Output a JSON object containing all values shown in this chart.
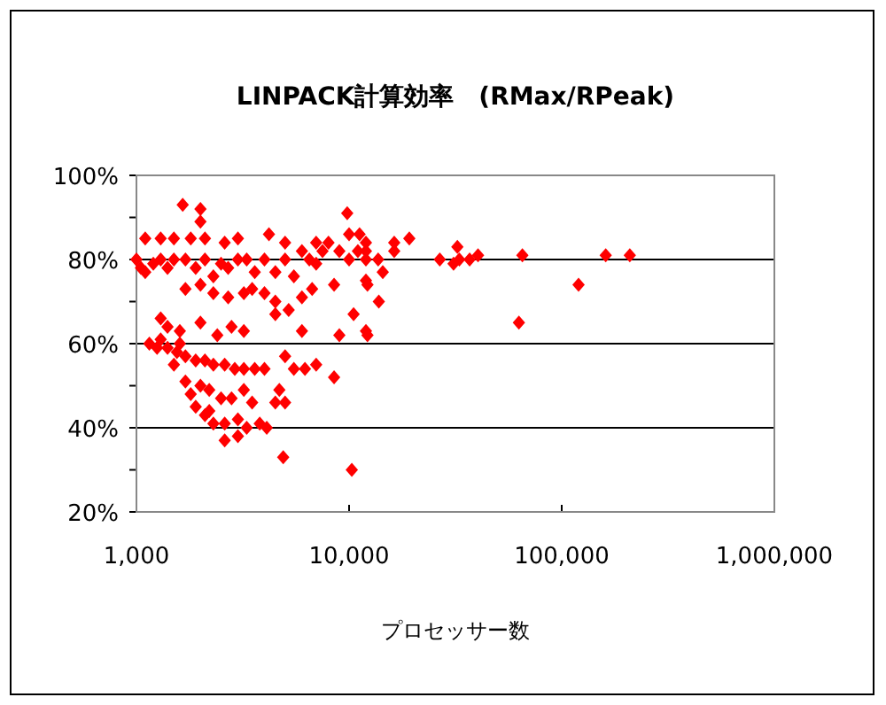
{
  "chart_data": {
    "type": "scatter",
    "title": "LINPACK計算効率　(RMax/RPeak)",
    "xlabel": "プロセッサー数",
    "log": "x",
    "xlim": [
      1000,
      1000000
    ],
    "xticks": [
      {
        "value": 1000,
        "label": "1,000"
      },
      {
        "value": 10000,
        "label": "10,000"
      },
      {
        "value": 100000,
        "label": "100,000"
      },
      {
        "value": 1000000,
        "label": "1,000,000"
      }
    ],
    "ylim": [
      20,
      100
    ],
    "yticks": [
      {
        "value": 20,
        "label": "20%"
      },
      {
        "value": 30,
        "label": null
      },
      {
        "value": 40,
        "label": "40%"
      },
      {
        "value": 50,
        "label": null
      },
      {
        "value": 60,
        "label": "60%"
      },
      {
        "value": 70,
        "label": null
      },
      {
        "value": 80,
        "label": "80%"
      },
      {
        "value": 90,
        "label": null
      },
      {
        "value": 100,
        "label": "100%"
      }
    ],
    "grid": "y",
    "marker": "diamond",
    "series": [
      {
        "color": "#ff0000",
        "x": [
          1650,
          2000,
          2000,
          1100,
          1300,
          1500,
          1800,
          2100,
          2600,
          3000,
          4200,
          5000,
          7000,
          10000,
          9800,
          1000,
          1050,
          1100,
          1200,
          1300,
          1400,
          1500,
          1700,
          1900,
          2100,
          2300,
          2500,
          2700,
          3000,
          3300,
          3600,
          4000,
          4500,
          5000,
          5500,
          6000,
          6500,
          7000,
          7500,
          8000,
          9000,
          10000,
          11000,
          1700,
          2000,
          2300,
          2700,
          3200,
          3500,
          4000,
          4500,
          5200,
          6000,
          6700,
          8500,
          10500,
          12000,
          1300,
          1400,
          1600,
          2000,
          2400,
          2800,
          3200,
          4500,
          6000,
          9000,
          12000,
          1150,
          1250,
          1400,
          1550,
          1700,
          1900,
          2100,
          2300,
          2600,
          2900,
          3200,
          3600,
          4000,
          1300,
          1600,
          5000,
          5500,
          6200,
          7000,
          8500,
          1500,
          1700,
          1800,
          2000,
          2200,
          2500,
          1900,
          2100,
          2300,
          2600,
          3000,
          3300,
          3800,
          4100,
          4500,
          5000,
          4700,
          3500,
          2800,
          2600,
          3000,
          4900,
          10300,
          2200,
          3200,
          11200,
          12000,
          12000,
          12000,
          13700,
          14400,
          12200,
          13800,
          12200,
          16300,
          16300,
          19200,
          26700,
          31000,
          32300,
          33000,
          36900,
          40400,
          65300,
          62900,
          120000,
          161000,
          209000
        ],
        "values": [
          93,
          92,
          89,
          85,
          85,
          85,
          85,
          85,
          84,
          85,
          86,
          84,
          84,
          86,
          91,
          80,
          78,
          77,
          79,
          80,
          78,
          80,
          80,
          78,
          80,
          76,
          79,
          78,
          80,
          80,
          77,
          80,
          77,
          80,
          76,
          82,
          80,
          79,
          82,
          84,
          82,
          80,
          82,
          73,
          74,
          72,
          71,
          72,
          73,
          72,
          70,
          68,
          71,
          73,
          74,
          67,
          75,
          66,
          64,
          63,
          65,
          62,
          64,
          63,
          67,
          63,
          62,
          63,
          60,
          59,
          59,
          58,
          57,
          56,
          56,
          55,
          55,
          54,
          54,
          54,
          54,
          61,
          60,
          57,
          54,
          54,
          55,
          52,
          55,
          51,
          48,
          50,
          49,
          47,
          45,
          43,
          41,
          41,
          42,
          40,
          41,
          40,
          46,
          46,
          49,
          46,
          47,
          37,
          38,
          33,
          30,
          44,
          49,
          86,
          84,
          82,
          80,
          80,
          77,
          74,
          70,
          62,
          84,
          82,
          85,
          80,
          79,
          83,
          80,
          80,
          81,
          81,
          65,
          74,
          81,
          81
        ]
      }
    ]
  }
}
